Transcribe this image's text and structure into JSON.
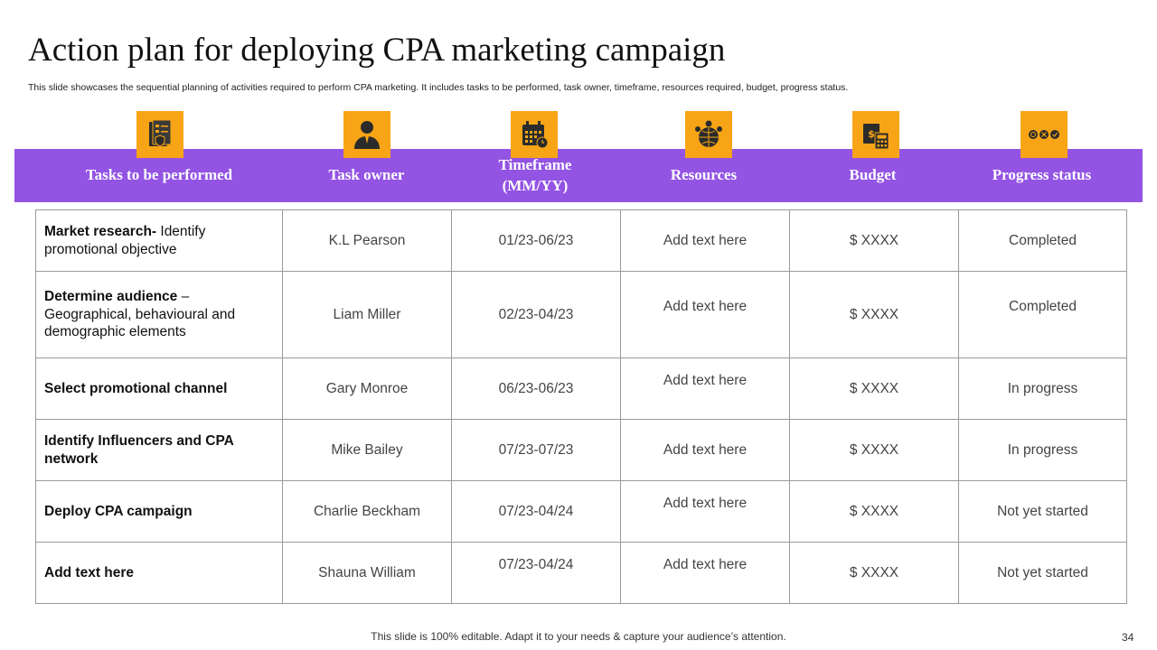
{
  "title": "Action plan for deploying CPA marketing campaign",
  "subtitle": "This slide showcases the sequential planning of activities required to perform CPA marketing. It includes tasks to be performed, task owner, timeframe, resources required, budget, progress status.",
  "headers": [
    {
      "label": "Tasks to be performed",
      "icon": "task-document-icon"
    },
    {
      "label": "Task owner",
      "icon": "person-icon"
    },
    {
      "label": "Timeframe (MM/YY)",
      "icon": "calendar-icon"
    },
    {
      "label": "Resources",
      "icon": "team-globe-icon"
    },
    {
      "label": "Budget",
      "icon": "money-calculator-icon"
    },
    {
      "label": "Progress status",
      "icon": "status-icons-icon"
    }
  ],
  "rows": [
    {
      "task_bold": "Market research-",
      "task_rest": " Identify promotional objective",
      "owner": "K.L Pearson",
      "timeframe": "01/23-06/23",
      "resources": "Add text here",
      "budget": "$ XXXX",
      "status": "Completed"
    },
    {
      "task_bold": "Determine audience",
      "task_rest": " – Geographical, behavioural and demographic elements",
      "owner": "Liam Miller",
      "timeframe": "02/23-04/23",
      "resources": "Add text here",
      "budget": "$ XXXX",
      "status": "Completed"
    },
    {
      "task_bold": "Select promotional channel",
      "task_rest": "",
      "owner": "Gary Monroe",
      "timeframe": "06/23-06/23",
      "resources": "Add text here",
      "budget": "$ XXXX",
      "status": "In progress"
    },
    {
      "task_bold": "Identify Influencers and CPA network",
      "task_rest": "",
      "owner": "Mike Bailey",
      "timeframe": "07/23-07/23",
      "resources": "Add text here",
      "budget": "$ XXXX",
      "status": "In progress"
    },
    {
      "task_bold": "Deploy CPA campaign",
      "task_rest": "",
      "owner": "Charlie Beckham",
      "timeframe": "07/23-04/24",
      "resources": "Add text here",
      "budget": "$ XXXX",
      "status": "Not yet started"
    },
    {
      "task_bold": "Add text here",
      "task_rest": "",
      "owner": "Shauna William",
      "timeframe": "07/23-04/24",
      "resources": "Add text here",
      "budget": "$ XXXX",
      "status": "Not yet started"
    }
  ],
  "footer": "This slide is 100% editable. Adapt it to your needs & capture your audience’s attention.",
  "page_number": "34",
  "colors": {
    "header_bg": "#9354e3",
    "icon_bg": "#f7a516",
    "border": "#9a9a9a"
  }
}
